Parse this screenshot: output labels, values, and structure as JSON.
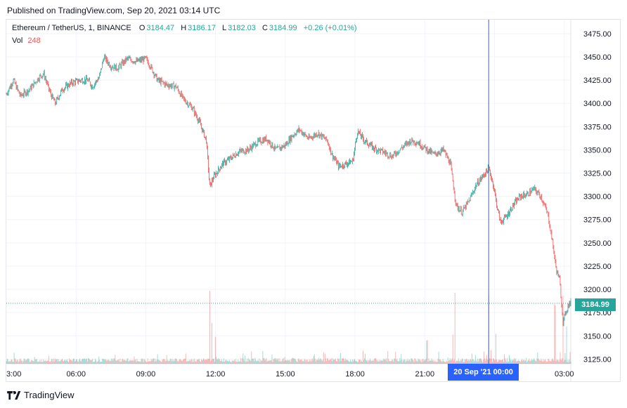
{
  "header": {
    "published": "Published on TradingView.com, Sep 20, 2021 03:14 UTC"
  },
  "legend": {
    "symbol": "Ethereum / TetherUS, 1, BINANCE",
    "o_label": "O",
    "o_value": "3184.47",
    "h_label": "H",
    "h_value": "3186.17",
    "l_label": "L",
    "l_value": "3182.03",
    "c_label": "C",
    "c_value": "3184.99",
    "change": "+0.26 (+0.01%)",
    "vol_label": "Vol",
    "vol_value": "248"
  },
  "price_tag": "3184.99",
  "crosshair_label": "20 Sep '21   00:00",
  "footer": {
    "brand": "TradingView"
  },
  "colors": {
    "up": "#26a69a",
    "down": "#ef5350",
    "crosshair": "#2962ff",
    "grid": "#f0f3fa",
    "axis_text": "#131722"
  },
  "chart_data": {
    "type": "candlestick",
    "symbol": "ETHUSDT",
    "interval": "1",
    "ylim": [
      3120,
      3490
    ],
    "y_ticks": [
      3125,
      3150,
      3175,
      3200,
      3225,
      3250,
      3275,
      3300,
      3325,
      3350,
      3375,
      3400,
      3425,
      3450,
      3475
    ],
    "y_tick_labels": [
      "3125.00",
      "3150.00",
      "3175.00",
      "3200.00",
      "3225.00",
      "3250.00",
      "3275.00",
      "3300.00",
      "3325.00",
      "3350.00",
      "3375.00",
      "3400.00",
      "3425.00",
      "3450.00",
      "3475.00"
    ],
    "xlim": [
      3.0,
      27.28
    ],
    "x_ticks": [
      3,
      6,
      9,
      12,
      15,
      18,
      21,
      24,
      27
    ],
    "x_tick_labels": [
      "3:00",
      "06:00",
      "09:00",
      "12:00",
      "15:00",
      "18:00",
      "21:00",
      "00:00",
      "03:00"
    ],
    "crosshair_x": 23.75,
    "last_price": 3184.99,
    "price_path": [
      [
        3.0,
        3410
      ],
      [
        3.3,
        3425
      ],
      [
        3.6,
        3408
      ],
      [
        4.0,
        3415
      ],
      [
        4.4,
        3428
      ],
      [
        4.6,
        3432
      ],
      [
        4.9,
        3410
      ],
      [
        5.1,
        3400
      ],
      [
        5.4,
        3415
      ],
      [
        5.8,
        3422
      ],
      [
        6.2,
        3425
      ],
      [
        6.5,
        3425
      ],
      [
        6.7,
        3418
      ],
      [
        7.0,
        3428
      ],
      [
        7.2,
        3450
      ],
      [
        7.5,
        3440
      ],
      [
        7.8,
        3438
      ],
      [
        8.2,
        3448
      ],
      [
        8.6,
        3445
      ],
      [
        9.0,
        3448
      ],
      [
        9.2,
        3440
      ],
      [
        9.5,
        3425
      ],
      [
        9.9,
        3420
      ],
      [
        10.3,
        3418
      ],
      [
        10.6,
        3405
      ],
      [
        11.0,
        3395
      ],
      [
        11.3,
        3380
      ],
      [
        11.6,
        3360
      ],
      [
        11.75,
        3310
      ],
      [
        11.9,
        3320
      ],
      [
        12.3,
        3335
      ],
      [
        12.6,
        3340
      ],
      [
        13.0,
        3348
      ],
      [
        13.4,
        3350
      ],
      [
        13.8,
        3358
      ],
      [
        14.2,
        3362
      ],
      [
        14.6,
        3350
      ],
      [
        15.0,
        3355
      ],
      [
        15.3,
        3365
      ],
      [
        15.6,
        3372
      ],
      [
        16.0,
        3362
      ],
      [
        16.4,
        3368
      ],
      [
        16.8,
        3360
      ],
      [
        17.0,
        3345
      ],
      [
        17.3,
        3332
      ],
      [
        17.6,
        3335
      ],
      [
        17.9,
        3338
      ],
      [
        18.1,
        3370
      ],
      [
        18.4,
        3360
      ],
      [
        18.8,
        3352
      ],
      [
        19.2,
        3348
      ],
      [
        19.6,
        3343
      ],
      [
        20.0,
        3352
      ],
      [
        20.4,
        3360
      ],
      [
        20.7,
        3358
      ],
      [
        21.0,
        3352
      ],
      [
        21.4,
        3345
      ],
      [
        21.8,
        3350
      ],
      [
        22.1,
        3335
      ],
      [
        22.35,
        3290
      ],
      [
        22.6,
        3283
      ],
      [
        22.9,
        3295
      ],
      [
        23.2,
        3312
      ],
      [
        23.5,
        3322
      ],
      [
        23.75,
        3330
      ],
      [
        23.95,
        3312
      ],
      [
        24.1,
        3290
      ],
      [
        24.25,
        3272
      ],
      [
        24.5,
        3278
      ],
      [
        24.8,
        3290
      ],
      [
        25.1,
        3300
      ],
      [
        25.4,
        3302
      ],
      [
        25.7,
        3308
      ],
      [
        26.0,
        3300
      ],
      [
        26.3,
        3280
      ],
      [
        26.5,
        3250
      ],
      [
        26.65,
        3222
      ],
      [
        26.8,
        3210
      ],
      [
        26.95,
        3165
      ],
      [
        27.1,
        3178
      ],
      [
        27.2,
        3185
      ]
    ],
    "volume_spikes": [
      [
        11.75,
        1.0
      ],
      [
        11.85,
        0.6
      ],
      [
        12.0,
        0.4
      ],
      [
        21.1,
        0.35
      ],
      [
        22.2,
        0.45
      ],
      [
        22.3,
        0.95
      ],
      [
        23.75,
        0.9
      ],
      [
        24.05,
        0.45
      ],
      [
        26.6,
        0.85
      ],
      [
        26.95,
        0.95
      ],
      [
        27.1,
        0.5
      ]
    ]
  }
}
